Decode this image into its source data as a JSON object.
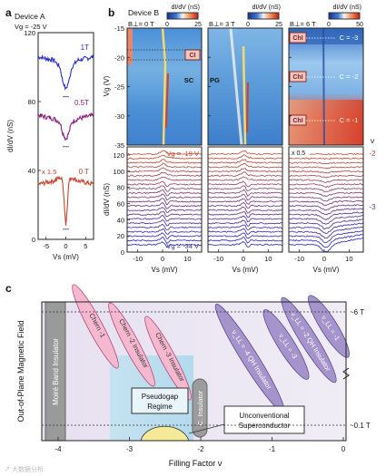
{
  "chart_data": [
    {
      "type": "line",
      "panel": "a",
      "title": "Device A",
      "subtitle": "Vg = -25 V",
      "xlabel": "Vs (mV)",
      "ylabel": "dI/dV (nS)",
      "xlim": [
        -7,
        7
      ],
      "ylim": [
        0,
        120
      ],
      "xticks": [
        "-5",
        "0",
        "5"
      ],
      "yticks": [
        "0",
        "40",
        "80",
        "120"
      ],
      "series": [
        {
          "name": "1T",
          "color": "#2a2fd0",
          "x": [
            -7,
            -5,
            -3,
            -1.5,
            -0.8,
            0,
            0.8,
            1.5,
            3,
            5,
            7
          ],
          "y": [
            106,
            105,
            104,
            100,
            92,
            87,
            92,
            100,
            104,
            105,
            106
          ]
        },
        {
          "name": "0.5T",
          "color": "#8a1b7a",
          "x": [
            -7,
            -5,
            -3,
            -1.5,
            -0.8,
            0,
            0.8,
            1.5,
            3,
            5,
            7
          ],
          "y": [
            72,
            71,
            70,
            68,
            62,
            58,
            62,
            68,
            70,
            71,
            72
          ]
        },
        {
          "name": "0 T",
          "color": "#c5432a",
          "x": [
            -7,
            -5,
            -3,
            -1.5,
            -0.8,
            0,
            0.8,
            1.5,
            3,
            5,
            7
          ],
          "y": [
            32,
            33,
            34,
            36,
            34,
            8,
            34,
            36,
            34,
            33,
            32
          ]
        }
      ],
      "annotations": [
        "x 1.5"
      ]
    },
    {
      "type": "heatmap",
      "panel": "b",
      "title": "Device B",
      "cmap_label": "dI/dV (nS)",
      "ylabel": "Vg (V)",
      "ylim": [
        -35,
        -15
      ],
      "yticks": [
        "-15",
        "-20",
        "-25",
        "-30",
        "-35"
      ],
      "panels": [
        {
          "field": "B⊥= 0 T",
          "cbar_ticks": [
            "0",
            "25"
          ],
          "labels": [
            "CI",
            "SC"
          ]
        },
        {
          "field": "B⊥= 3 T",
          "cbar_ticks": [
            "0",
            "25"
          ],
          "labels": [
            "PG"
          ]
        },
        {
          "field": "B⊥= 6 T",
          "cbar_ticks": [
            "0",
            "50"
          ],
          "labels": [
            "ChI",
            "ChI",
            "ChI",
            "C = -3",
            "C = -2",
            "C = -1"
          ]
        }
      ]
    },
    {
      "type": "line",
      "panel": "b-lower",
      "xlabel": "Vs (mV)",
      "ylabel": "dI/dV (nS)",
      "ylim": [
        0,
        130
      ],
      "yticks": [
        "0",
        "20",
        "40",
        "60",
        "80",
        "100",
        "120"
      ],
      "xticks": [
        "-10",
        "0",
        "10"
      ],
      "annotations": [
        "Vg = -19 V",
        "Vg = -34 V",
        "x 0.5"
      ],
      "filling_labels": [
        "ν",
        "-2",
        "-3"
      ]
    },
    {
      "type": "diagram",
      "panel": "c",
      "xlabel": "Filling Factor ν",
      "ylabel": "Out-of-Plane Magnetic Field",
      "xticks": [
        "-4",
        "-3",
        "-2",
        "-1",
        "0"
      ],
      "right_labels": [
        "~6 T",
        "~0.1 T"
      ],
      "regions": [
        "Moiré Band Insulator",
        "Chern -1",
        "Chern -2 Insulator",
        "Chern -3 Insulator",
        "ν_LL = -4 QH Insulator",
        "ν_LL = -3",
        "ν_LL = -2 QH Insulator",
        "ν_LL = -1",
        "Pseudogap Regime",
        "C. Insulator",
        "Unconventional Superconductor"
      ]
    }
  ],
  "panel_labels": [
    "a",
    "b",
    "c"
  ],
  "watermark": "↗ 大数据分析"
}
